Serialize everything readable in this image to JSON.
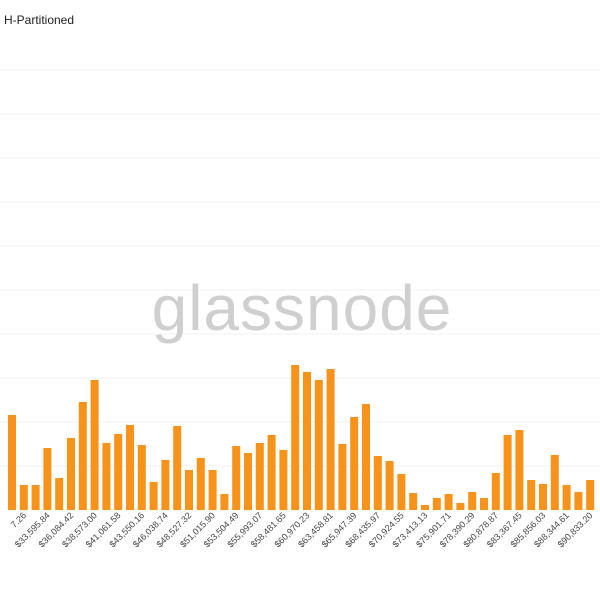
{
  "chart_data": {
    "type": "bar",
    "title": "H-Partitioned",
    "watermark": "glassnode",
    "color": "#f7931a",
    "categories": [
      null,
      "7.26",
      null,
      "$33,595.84",
      null,
      "$36,084.42",
      null,
      "$38,573.00",
      null,
      "$41,061.58",
      null,
      "$43,550.16",
      null,
      "$46,038.74",
      null,
      "$48,527.32",
      null,
      "$51,015.90",
      null,
      "$53,504.49",
      null,
      "$55,993.07",
      null,
      "$58,481.65",
      null,
      "$60,970.23",
      null,
      "$63,458.81",
      null,
      "$65,947.39",
      null,
      "$68,435.97",
      null,
      "$70,924.55",
      null,
      "$73,413.13",
      null,
      "$75,901.71",
      null,
      "$78,390.29",
      null,
      "$80,878.87",
      null,
      "$83,367.45",
      null,
      "$85,856.03",
      null,
      "$88,344.61",
      null,
      "$90,833.20"
    ],
    "values": [
      95,
      25,
      25,
      62,
      32,
      72,
      108,
      130,
      67,
      76,
      85,
      65,
      28,
      50,
      84,
      40,
      52,
      40,
      16,
      64,
      57,
      67,
      75,
      60,
      145,
      138,
      130,
      141,
      66,
      93,
      106,
      54,
      49,
      36,
      17,
      5,
      12,
      16,
      7,
      18,
      12,
      37,
      75,
      80,
      30,
      26,
      55,
      25,
      18,
      30
    ],
    "ylim": [
      0,
      500
    ]
  }
}
